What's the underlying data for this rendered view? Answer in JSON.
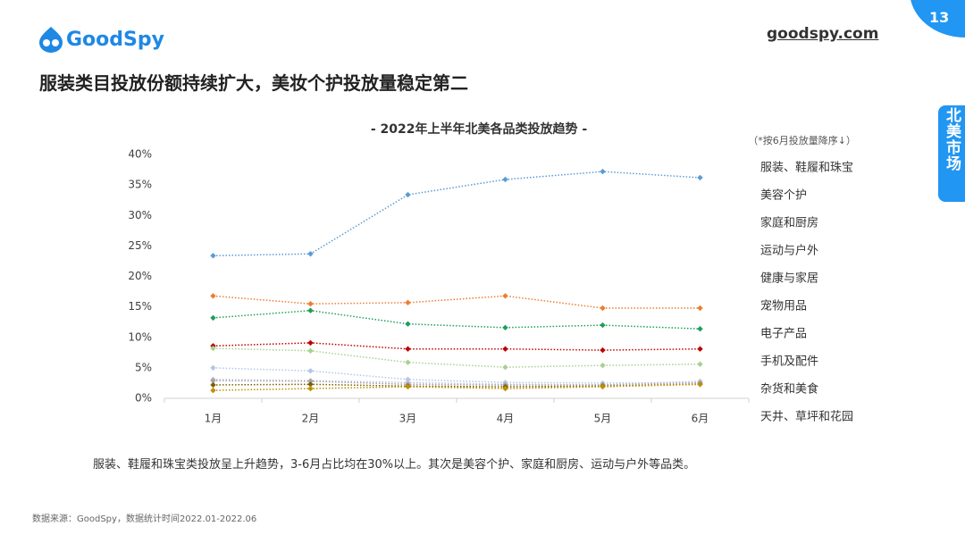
{
  "slide": {
    "logo": "GoodSpy",
    "site": "goodspy.com",
    "page_number": "13",
    "side_tab": "北美市场",
    "headline": "服装类目投放份额持续扩大，美妆个护投放量稳定第二",
    "caption": "服装、鞋履和珠宝类投放呈上升趋势，3-6月占比均在30%以上。其次是美容个护、家庭和厨房、运动与户外等品类。",
    "source": "数据来源：GoodSpy，数据统计时间2022.01-2022.06"
  },
  "chart_data": {
    "type": "line",
    "title": "- 2022年上半年北美各品类投放趋势 -",
    "note": "（*按6月投放量降序↓）",
    "categories": [
      "1月",
      "2月",
      "3月",
      "4月",
      "5月",
      "6月"
    ],
    "ylim": [
      0,
      40
    ],
    "yticks": [
      {
        "value": 0,
        "label": "0%"
      },
      {
        "value": 5,
        "label": "5%"
      },
      {
        "value": 10,
        "label": "10%"
      },
      {
        "value": 15,
        "label": "15%"
      },
      {
        "value": 20,
        "label": "20%"
      },
      {
        "value": 25,
        "label": "25%"
      },
      {
        "value": 30,
        "label": "30%"
      },
      {
        "value": 35,
        "label": "35%"
      },
      {
        "value": 40,
        "label": "40%"
      }
    ],
    "grid": false,
    "series": [
      {
        "name": "服装、鞋履和珠宝",
        "color": "#5b9bd5",
        "values": [
          23.4,
          23.7,
          33.4,
          35.9,
          37.2,
          36.2
        ]
      },
      {
        "name": "美容个护",
        "color": "#ed7d31",
        "values": [
          16.8,
          15.5,
          15.7,
          16.8,
          14.8,
          14.8
        ]
      },
      {
        "name": "家庭和厨房",
        "color": "#1f9e5a",
        "values": [
          13.2,
          14.4,
          12.2,
          11.6,
          12.0,
          11.4
        ]
      },
      {
        "name": "运动与户外",
        "color": "#c00000",
        "values": [
          8.6,
          9.1,
          8.1,
          8.1,
          7.9,
          8.1
        ]
      },
      {
        "name": "健康与家居",
        "color": "#a9d18e",
        "values": [
          8.2,
          7.8,
          5.9,
          5.1,
          5.4,
          5.6
        ]
      },
      {
        "name": "宠物用品",
        "color": "#b4c7e7",
        "values": [
          5.0,
          4.5,
          3.1,
          2.6,
          2.5,
          2.6
        ]
      },
      {
        "name": "电子产品",
        "color": "#c5c0e0",
        "values": [
          3.1,
          2.9,
          2.6,
          2.3,
          2.2,
          2.8
        ]
      },
      {
        "name": "手机及配件",
        "color": "#a5a5a5",
        "values": [
          2.9,
          2.8,
          2.3,
          2.2,
          2.2,
          2.5
        ]
      },
      {
        "name": "杂货和美食",
        "color": "#7f6000",
        "values": [
          2.2,
          2.3,
          2.0,
          1.9,
          2.0,
          2.3
        ]
      },
      {
        "name": "天井、草坪和花园",
        "color": "#bf9000",
        "values": [
          1.3,
          1.6,
          1.9,
          1.6,
          1.9,
          2.3
        ]
      }
    ]
  }
}
